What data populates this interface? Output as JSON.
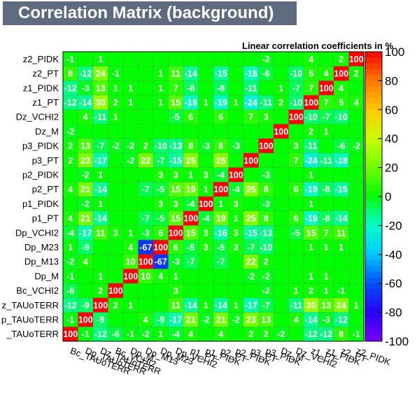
{
  "chart_data": {
    "type": "heatmap",
    "title": "Correlation Matrix (background)",
    "subtitle": "Linear correlation coefficients in %",
    "labels": [
      "Bc_TAUoTERR",
      "Dp_TAUoTERR",
      "Dz_TAUoTERR",
      "Bc_VCHI2",
      "Dp_M",
      "Dp_M13",
      "Dp_M23",
      "Dp_VCHI2",
      "p1_PT",
      "p1_PIDK",
      "p2_PT",
      "p2_PIDK",
      "p3_PT",
      "p3_PIDK",
      "Dz_M",
      "Dz_VCHI2",
      "z1_PT",
      "z1_PIDK",
      "z2_PT",
      "z2_PIDK"
    ],
    "row_labels": [
      "z2_PIDK",
      "z2_PT",
      "z1_PIDK",
      "z1_PT",
      "Dz_VCHI2",
      "Dz_M",
      "p3_PIDK",
      "p3_PT",
      "p2_PIDK",
      "p2_PT",
      "p1_PIDK",
      "p1_PT",
      "Dp_VCHI2",
      "Dp_M23",
      "Dp_M13",
      "Dp_M",
      "Bc_VCHI2",
      "z_TAUoTERR",
      "p_TAUoTERR",
      "_TAUoTERR"
    ],
    "x_tick_labels": [
      "Bc_TAUoTERR",
      "Dp_TAUoTERR",
      "Dz_TAUoTERR",
      "Bc_VCHI2",
      "Dp_M",
      "Dp_M13",
      "Dp_M23",
      "Dp_VCHI2",
      "p1_PT",
      "p1_PIDK",
      "p2_PT",
      "p2_PIDK",
      "p3_PT",
      "p3_PIDK",
      "Dz_M",
      "Dz_VCHI2",
      "z1_PT",
      "z1_PIDK",
      "z2_PT",
      "z2_PIDK"
    ],
    "values": [
      [
        100,
        -1,
        -12,
        -6,
        -1,
        -2,
        1,
        -4,
        4,
        null,
        4,
        null,
        2,
        2,
        -2,
        null,
        -12,
        -12,
        8,
        -1
      ],
      [
        -1,
        100,
        -9,
        null,
        null,
        4,
        -9,
        -17,
        21,
        -2,
        21,
        -2,
        23,
        13,
        null,
        4,
        -14,
        -3,
        -12,
        null
      ],
      [
        -12,
        -9,
        100,
        2,
        1,
        null,
        null,
        11,
        -14,
        1,
        -14,
        1,
        -17,
        -7,
        null,
        -11,
        30,
        13,
        24,
        1
      ],
      [
        -6,
        null,
        2,
        100,
        null,
        null,
        null,
        3,
        null,
        null,
        null,
        null,
        null,
        -2,
        null,
        1,
        2,
        1,
        -1,
        null
      ],
      [
        -1,
        null,
        1,
        null,
        100,
        10,
        4,
        1,
        null,
        null,
        null,
        null,
        -2,
        -2,
        null,
        null,
        1,
        1,
        null,
        null
      ],
      [
        -2,
        4,
        null,
        null,
        10,
        100,
        -67,
        -3,
        -7,
        null,
        -7,
        null,
        22,
        2,
        null,
        null,
        null,
        null,
        null,
        null
      ],
      [
        1,
        -9,
        null,
        null,
        4,
        -67,
        100,
        6,
        -5,
        3,
        -5,
        3,
        -7,
        -10,
        null,
        null,
        1,
        1,
        1,
        null
      ],
      [
        -4,
        -17,
        11,
        3,
        1,
        -3,
        6,
        100,
        15,
        3,
        15,
        3,
        -15,
        -13,
        null,
        -5,
        15,
        7,
        11,
        null
      ],
      [
        4,
        21,
        -14,
        null,
        null,
        -7,
        -5,
        15,
        100,
        -4,
        19,
        1,
        25,
        8,
        null,
        6,
        -19,
        -8,
        -14,
        null
      ],
      [
        null,
        -2,
        1,
        null,
        null,
        null,
        3,
        3,
        -4,
        100,
        1,
        3,
        null,
        -3,
        null,
        null,
        1,
        null,
        null,
        null
      ],
      [
        4,
        21,
        -14,
        null,
        null,
        -7,
        -5,
        -16,
        19,
        1,
        100,
        -4,
        25,
        8,
        null,
        6,
        -19,
        -8,
        -15,
        null
      ],
      [
        null,
        -2,
        1,
        null,
        null,
        null,
        3,
        3,
        1,
        3,
        -4,
        100,
        null,
        -3,
        null,
        null,
        1,
        null,
        null,
        null
      ],
      [
        2,
        23,
        -17,
        null,
        -2,
        22,
        -7,
        -15,
        25,
        null,
        25,
        null,
        100,
        null,
        null,
        7,
        -24,
        -11,
        -18,
        null
      ],
      [
        2,
        13,
        -7,
        -2,
        -2,
        2,
        -10,
        -13,
        8,
        -3,
        8,
        -3,
        null,
        100,
        null,
        3,
        -11,
        null,
        -6,
        -2
      ],
      [
        -2,
        null,
        null,
        null,
        null,
        null,
        null,
        null,
        null,
        null,
        null,
        null,
        null,
        null,
        100,
        null,
        2,
        1,
        null,
        null
      ],
      [
        null,
        4,
        -11,
        1,
        null,
        null,
        null,
        -5,
        6,
        null,
        6,
        null,
        7,
        3,
        null,
        100,
        -10,
        -7,
        -10,
        null
      ],
      [
        -12,
        -14,
        30,
        2,
        1,
        null,
        1,
        15,
        -19,
        1,
        -19,
        1,
        -24,
        -11,
        2,
        -10,
        100,
        7,
        5,
        4
      ],
      [
        -12,
        -3,
        13,
        1,
        1,
        null,
        1,
        7,
        -8,
        null,
        -8,
        null,
        -11,
        null,
        1,
        -7,
        7,
        100,
        4,
        null
      ],
      [
        8,
        -12,
        24,
        -1,
        null,
        null,
        1,
        11,
        -14,
        null,
        -15,
        null,
        -18,
        -6,
        null,
        -10,
        5,
        4,
        100,
        2
      ],
      [
        -1,
        null,
        1,
        null,
        null,
        null,
        null,
        null,
        null,
        null,
        null,
        null,
        null,
        -2,
        null,
        null,
        4,
        null,
        2,
        100
      ]
    ],
    "zlim": [
      -100,
      100
    ],
    "colorbar_ticks": [
      -100,
      -80,
      -60,
      -40,
      -20,
      0,
      20,
      40,
      60,
      80,
      100
    ]
  }
}
